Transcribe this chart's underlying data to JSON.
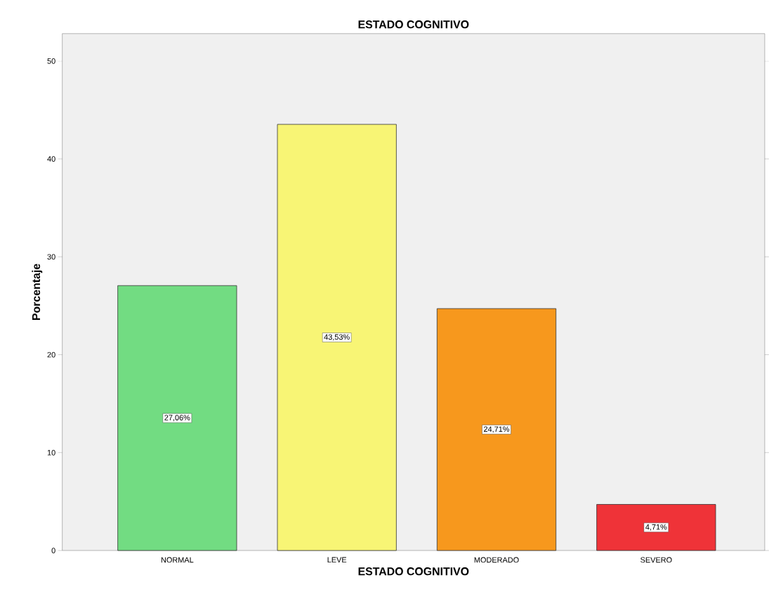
{
  "chart_data": {
    "type": "bar",
    "title": "ESTADO COGNITIVO",
    "xlabel": "ESTADO COGNITIVO",
    "ylabel": "Porcentaje",
    "categories": [
      "NORMAL",
      "LEVE",
      "MODERADO",
      "SEVERO"
    ],
    "values": [
      27.06,
      43.53,
      24.71,
      4.71
    ],
    "colors": [
      "#72dc82",
      "#f8f575",
      "#f7981d",
      "#ef3338"
    ],
    "value_labels": [
      "27,06%",
      "43,53%",
      "24,71%",
      "4,71%"
    ],
    "ylim": [
      0,
      52.8
    ],
    "yticks": [
      0,
      10,
      20,
      30,
      40,
      50
    ]
  }
}
